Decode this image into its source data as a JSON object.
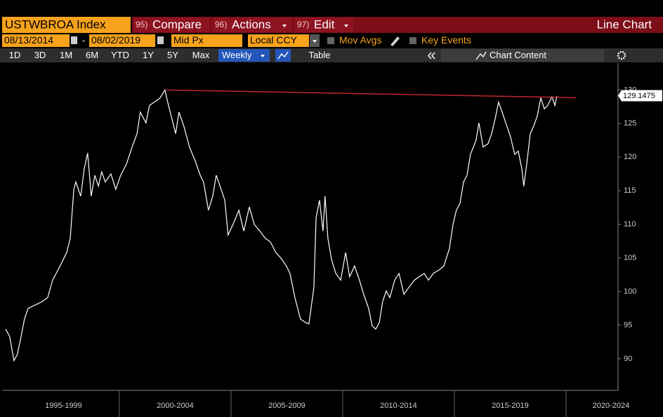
{
  "toolbar": {
    "ticker": "USTWBROA Index",
    "buttons": [
      {
        "number": "95)",
        "label": "Compare"
      },
      {
        "number": "96)",
        "label": "Actions"
      },
      {
        "number": "97)",
        "label": "Edit"
      }
    ],
    "view": "Line Chart",
    "start_date": "08/13/2014",
    "date_separator": "-",
    "end_date": "08/02/2019",
    "price_field": "Mid Px",
    "currency": "Local CCY",
    "options": [
      "Mov Avgs",
      "Key Events"
    ],
    "periods": [
      "1D",
      "3D",
      "1M",
      "6M",
      "YTD",
      "1Y",
      "5Y",
      "Max"
    ],
    "frequency": "Weekly",
    "table": "Table",
    "chart_content": "Chart Content"
  },
  "chart_data": {
    "type": "line",
    "color": "#ffffff",
    "x": [
      1994.91,
      1995.09,
      1995.28,
      1995.44,
      1995.6,
      1995.75,
      1995.91,
      1996.23,
      1996.54,
      1996.79,
      1997.01,
      1997.17,
      1997.42,
      1997.64,
      1997.8,
      1997.96,
      1998.05,
      1998.27,
      1998.43,
      1998.58,
      1998.74,
      1998.9,
      1999.06,
      1999.21,
      1999.37,
      1999.62,
      1999.84,
      2000.06,
      2000.31,
      2000.57,
      2000.79,
      2000.94,
      2001.19,
      2001.35,
      2001.57,
      2001.82,
      2002.04,
      2002.2,
      2002.36,
      2002.52,
      2002.67,
      2002.89,
      2003.14,
      2003.4,
      2003.62,
      2003.77,
      2003.99,
      2004.18,
      2004.34,
      2004.56,
      2004.72,
      2004.87,
      2005.09,
      2005.35,
      2005.57,
      2005.82,
      2006.04,
      2006.29,
      2006.54,
      2006.76,
      2007.01,
      2007.23,
      2007.48,
      2007.64,
      2007.86,
      2008.11,
      2008.33,
      2008.49,
      2008.71,
      2008.81,
      2008.96,
      2009.12,
      2009.21,
      2009.34,
      2009.5,
      2009.69,
      2009.91,
      2010.13,
      2010.31,
      2010.53,
      2010.75,
      2010.94,
      2011.16,
      2011.32,
      2011.48,
      2011.64,
      2011.79,
      2011.95,
      2012.11,
      2012.33,
      2012.52,
      2012.74,
      2012.96,
      2013.21,
      2013.43,
      2013.65,
      2013.84,
      2014.06,
      2014.31,
      2014.53,
      2014.78,
      2014.94,
      2015.09,
      2015.25,
      2015.41,
      2015.57,
      2015.72,
      2015.97,
      2016.1,
      2016.29,
      2016.51,
      2016.67,
      2016.82,
      2016.98,
      2017.14,
      2017.3,
      2017.52,
      2017.7,
      2017.86,
      2018.02,
      2018.11,
      2018.24,
      2018.4,
      2018.55,
      2018.71,
      2018.87,
      2019.03,
      2019.18,
      2019.37,
      2019.5,
      2019.59
    ],
    "values": [
      94.4,
      93.3,
      89.7,
      90.7,
      93.3,
      95.9,
      97.5,
      98.0,
      98.5,
      99.1,
      101.7,
      102.7,
      104.3,
      105.8,
      107.9,
      115.2,
      116.3,
      114.2,
      118.3,
      120.6,
      114.2,
      117.3,
      115.7,
      117.8,
      116.3,
      117.5,
      115.2,
      117.3,
      118.9,
      121.5,
      123.5,
      126.7,
      125.1,
      127.7,
      128.2,
      128.8,
      130.0,
      127.7,
      125.6,
      123.5,
      126.7,
      124.6,
      121.5,
      119.4,
      117.3,
      116.3,
      112.1,
      114.2,
      117.3,
      115.2,
      113.6,
      108.4,
      110.0,
      112.1,
      109.0,
      112.6,
      110.0,
      109.0,
      107.9,
      107.4,
      105.8,
      105.0,
      103.8,
      102.7,
      99.1,
      95.9,
      95.4,
      95.2,
      100.6,
      111.0,
      113.6,
      109.0,
      114.2,
      107.9,
      104.8,
      102.7,
      101.7,
      105.8,
      102.2,
      103.8,
      101.7,
      99.6,
      97.5,
      94.9,
      94.4,
      95.4,
      98.5,
      100.1,
      99.1,
      101.7,
      102.7,
      99.6,
      100.6,
      101.7,
      102.2,
      102.7,
      101.7,
      102.7,
      103.2,
      103.8,
      106.4,
      110.0,
      112.1,
      113.1,
      116.3,
      117.3,
      120.4,
      122.5,
      125.1,
      121.5,
      122.0,
      123.5,
      125.6,
      128.2,
      126.7,
      125.1,
      123.0,
      120.4,
      120.9,
      118.3,
      115.7,
      118.9,
      123.5,
      124.6,
      126.1,
      128.8,
      127.2,
      127.7,
      129.0,
      127.7,
      129.1
    ],
    "trendline": {
      "x": [
        2002.04,
        2020.44
      ],
      "values": [
        130.0,
        128.85
      ],
      "color": "#c0282d"
    },
    "last_price": 129.1475,
    "xlim": [
      1994.75,
      2022.33
    ],
    "xticks": [
      {
        "value": 1995,
        "label": "1995-1999"
      },
      {
        "value": 2000,
        "label": "2000-2004"
      },
      {
        "value": 2005,
        "label": "2005-2009"
      },
      {
        "value": 2010,
        "label": "2010-2014"
      },
      {
        "value": 2015,
        "label": "2015-2019"
      },
      {
        "value": 2020,
        "label": "2020-2024"
      }
    ],
    "ylim": [
      85.5,
      134
    ],
    "yticks": [
      90,
      95,
      100,
      105,
      110,
      115,
      120,
      125,
      130
    ],
    "grid": false
  }
}
